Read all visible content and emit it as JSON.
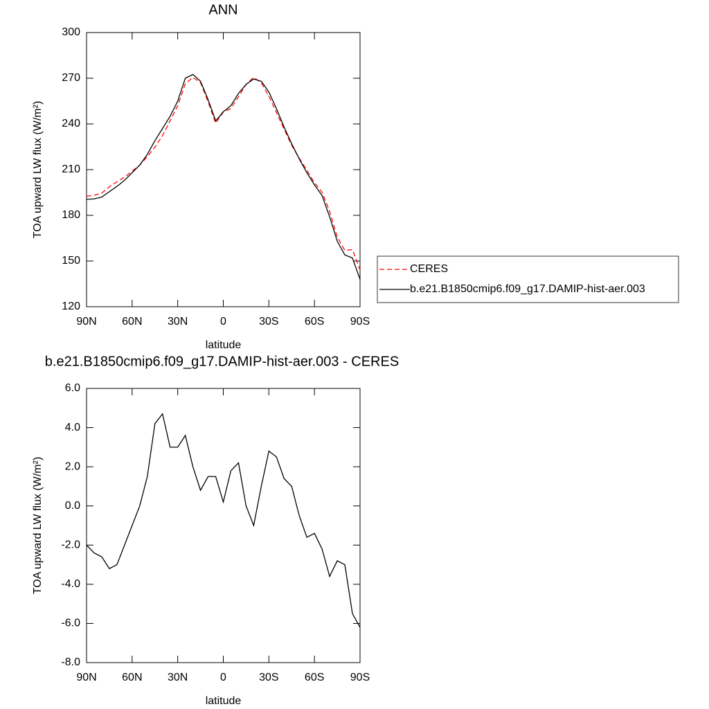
{
  "chart_data": [
    {
      "type": "line",
      "title": "ANN",
      "xlabel": "latitude",
      "ylabel": "TOA upward LW flux (W/m²)",
      "x": [
        90,
        85,
        80,
        75,
        70,
        65,
        60,
        55,
        50,
        45,
        40,
        35,
        30,
        25,
        20,
        15,
        10,
        5,
        0,
        -5,
        -10,
        -15,
        -20,
        -25,
        -30,
        -35,
        -40,
        -45,
        -50,
        -55,
        -60,
        -65,
        -70,
        -75,
        -80,
        -85,
        -90
      ],
      "xlim": [
        90,
        -90
      ],
      "xticks": [
        {
          "value": 90,
          "label": "90N"
        },
        {
          "value": 60,
          "label": "60N"
        },
        {
          "value": 30,
          "label": "30N"
        },
        0,
        {
          "value": -30,
          "label": "30S"
        },
        {
          "value": -60,
          "label": "60S"
        },
        {
          "value": -90,
          "label": "90S"
        }
      ],
      "ylim": [
        120,
        300
      ],
      "yticks": [
        120,
        150,
        180,
        210,
        240,
        270,
        300
      ],
      "legend": "right",
      "series": [
        {
          "name": "CERES",
          "color": "#ff0000",
          "dash": true,
          "values": [
            192.5,
            193.2,
            194.6,
            198.7,
            202,
            205,
            209,
            213,
            218.5,
            224.8,
            232.3,
            242,
            252,
            266.4,
            270.5,
            267.2,
            254.5,
            240.5,
            247.8,
            250.2,
            257.8,
            266,
            270.5,
            267,
            258.2,
            247.5,
            236.6,
            226,
            217.5,
            209.6,
            201.4,
            195.2,
            182.6,
            165.8,
            157,
            157.5,
            144.2
          ]
        },
        {
          "name": "b.e21.B1850cmip6.f09_g17.DAMIP-hist-aer.003",
          "color": "#000000",
          "dash": false,
          "values": [
            190.5,
            190.8,
            192,
            195.5,
            199,
            203,
            208,
            213,
            220,
            229,
            237,
            245,
            255,
            270,
            272.5,
            268,
            256,
            242,
            248,
            252,
            260,
            266,
            269.5,
            268,
            261,
            250,
            238,
            227,
            217,
            208,
            200,
            193,
            179,
            163,
            154,
            152,
            138
          ]
        }
      ]
    },
    {
      "type": "line",
      "title": "b.e21.B1850cmip6.f09_g17.DAMIP-hist-aer.003 - CERES",
      "xlabel": "latitude",
      "ylabel": "TOA upward LW flux (W/m²)",
      "x": [
        90,
        85,
        80,
        75,
        70,
        65,
        60,
        55,
        50,
        45,
        40,
        35,
        30,
        25,
        20,
        15,
        10,
        5,
        0,
        -5,
        -10,
        -15,
        -20,
        -25,
        -30,
        -35,
        -40,
        -45,
        -50,
        -55,
        -60,
        -65,
        -70,
        -75,
        -80,
        -85,
        -90
      ],
      "xlim": [
        90,
        -90
      ],
      "xticks": [
        {
          "value": 90,
          "label": "90N"
        },
        {
          "value": 60,
          "label": "60N"
        },
        {
          "value": 30,
          "label": "30N"
        },
        0,
        {
          "value": -30,
          "label": "30S"
        },
        {
          "value": -60,
          "label": "60S"
        },
        {
          "value": -90,
          "label": "90S"
        }
      ],
      "ylim": [
        -8,
        6
      ],
      "yticks": [
        {
          "value": -8,
          "label": "-8.0"
        },
        {
          "value": -6,
          "label": "-6.0"
        },
        {
          "value": -4,
          "label": "-4.0"
        },
        {
          "value": -2,
          "label": "-2.0"
        },
        {
          "value": 0,
          "label": "0.0"
        },
        {
          "value": 2,
          "label": "2.0"
        },
        {
          "value": 4,
          "label": "4.0"
        },
        {
          "value": 6,
          "label": "6.0"
        }
      ],
      "series": [
        {
          "color": "#000000",
          "dash": false,
          "values": [
            -2.0,
            -2.4,
            -2.6,
            -3.2,
            -3.0,
            -2.0,
            -1.0,
            0.0,
            1.5,
            4.2,
            4.7,
            3.0,
            3.0,
            3.6,
            2.0,
            0.8,
            1.5,
            1.5,
            0.2,
            1.8,
            2.2,
            0.0,
            -1.0,
            1.0,
            2.8,
            2.5,
            1.4,
            1.0,
            -0.5,
            -1.6,
            -1.4,
            -2.2,
            -3.6,
            -2.8,
            -3.0,
            -5.5,
            -6.2
          ]
        }
      ]
    }
  ]
}
